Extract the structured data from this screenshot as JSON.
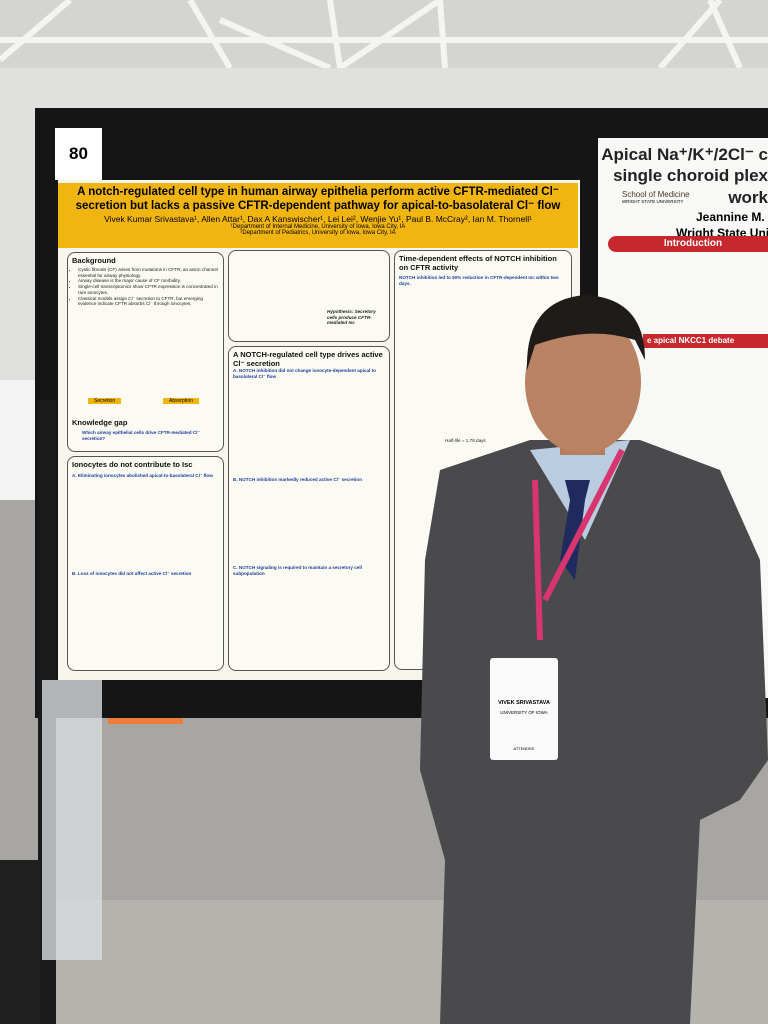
{
  "board_number": "80",
  "poster": {
    "title": "A notch-regulated cell type in human airway epithelia perform active CFTR-mediated Cl⁻ secretion but lacks a passive CFTR-dependent pathway for apical-to-basolateral Cl⁻ flow",
    "authors": "Vivek Kumar Srivastava¹, Allen Attar¹, Dax A Kanswischer¹, Lei Lei², Wenjie Yu¹, Paul B. McCray², Ian M. Thornell¹",
    "affiliations": [
      "¹Department of Internal Medicine, University of Iowa, Iowa City, IA",
      "²Department of Pediatrics, University of Iowa, Iowa City, IA"
    ],
    "background": {
      "heading": "Background",
      "bullets": [
        "Cystic fibrosis (CF) arises from mutations in CFTR, an anion channel essential for airway physiology.",
        "Airway disease is the major cause of CF morbidity.",
        "Single-cell transcriptomics show CFTR expression is concentrated in rare ionocytes.",
        "Classical models assign Cl⁻ secretion to CFTR, but emerging evidence indicate CFTR absorbs Cl⁻ through ionocytes."
      ],
      "labels": [
        "Secretion",
        "Absorption"
      ]
    },
    "knowledge_gap": {
      "heading": "Knowledge gap",
      "text": "Which airway epithelial cells drive CFTR-mediated Cl⁻ secretion?"
    },
    "hypothesis": "Hypothesis: Secretory cells produce CFTR-mediated Isc",
    "ionocytes": {
      "heading": "Ionocytes do not contribute to Isc",
      "a": "A. Eliminating ionocytes abolished apical-to-basolateral Cl⁻ flow",
      "b": "B. Loss of ionocytes did not affect active Cl⁻ secretion"
    },
    "notch": {
      "heading": "A NOTCH-regulated cell type drives active Cl⁻ secretion",
      "a": "A. NOTCH inhibition did not change ionocyte-dependent apical to basolateral Cl⁻ flow",
      "b": "B. NOTCH inhibition markedly reduced active Cl⁻ secretion",
      "c": "C. NOTCH signaling is required to maintain a secretory cell subpopulation"
    },
    "time": {
      "heading": "Time-dependent effects of NOTCH inhibition on CFTR activity",
      "text": "NOTCH inhibition led to 50% reduction in CFTR-dependent Isc within two days.",
      "half_life": "Half-life = 1.78 days"
    }
  },
  "right_poster": {
    "title_lines": [
      "Apical Na⁺/K⁺/2Cl⁻ c",
      "single choroid plex",
      "work"
    ],
    "school": "School of Medicine",
    "university_small": "WRIGHT STATE UNIVERSITY",
    "author": "Jeannine M.",
    "affiliation": "Wright State Universit",
    "introduction": "Introduction",
    "debate": "e apical NKCC1 debate"
  },
  "badge": {
    "name": "VIVEK SRIVASTAVA",
    "affiliation": "UNIVERSITY OF IOWA",
    "role": "ATTENDEE"
  }
}
